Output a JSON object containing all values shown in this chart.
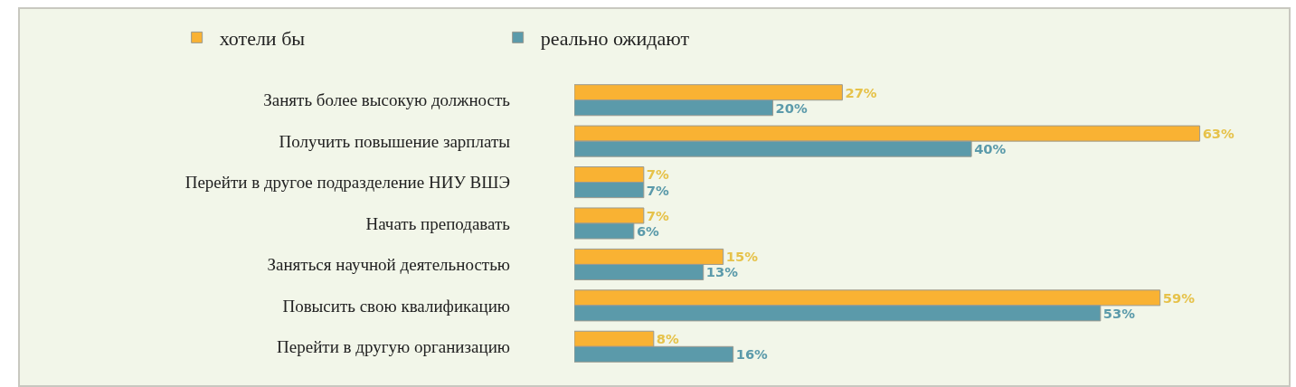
{
  "chart_data": {
    "type": "bar",
    "orientation": "horizontal",
    "categories": [
      "Занять более высокую должность",
      "Получить повышение зарплаты",
      "Перейти в другое подразделение НИУ ВШЭ",
      "Начать преподавать",
      "Заняться научной деятельностью",
      "Повысить свою квалификацию",
      "Перейти в другую организацию"
    ],
    "series": [
      {
        "name": "хотели бы",
        "color": "#f9b233",
        "values": [
          27,
          63,
          7,
          7,
          15,
          59,
          8
        ],
        "value_labels": [
          "27%",
          "63%",
          "7%",
          "7%",
          "15%",
          "59%",
          "8%"
        ]
      },
      {
        "name": "реально ожидают",
        "color": "#5b9aaa",
        "values": [
          20,
          40,
          7,
          6,
          13,
          53,
          16
        ],
        "value_labels": [
          "20%",
          "40%",
          "7%",
          "6%",
          "13%",
          "53%",
          "16%"
        ]
      }
    ],
    "tick_labels": "y",
    "legend": "top"
  }
}
